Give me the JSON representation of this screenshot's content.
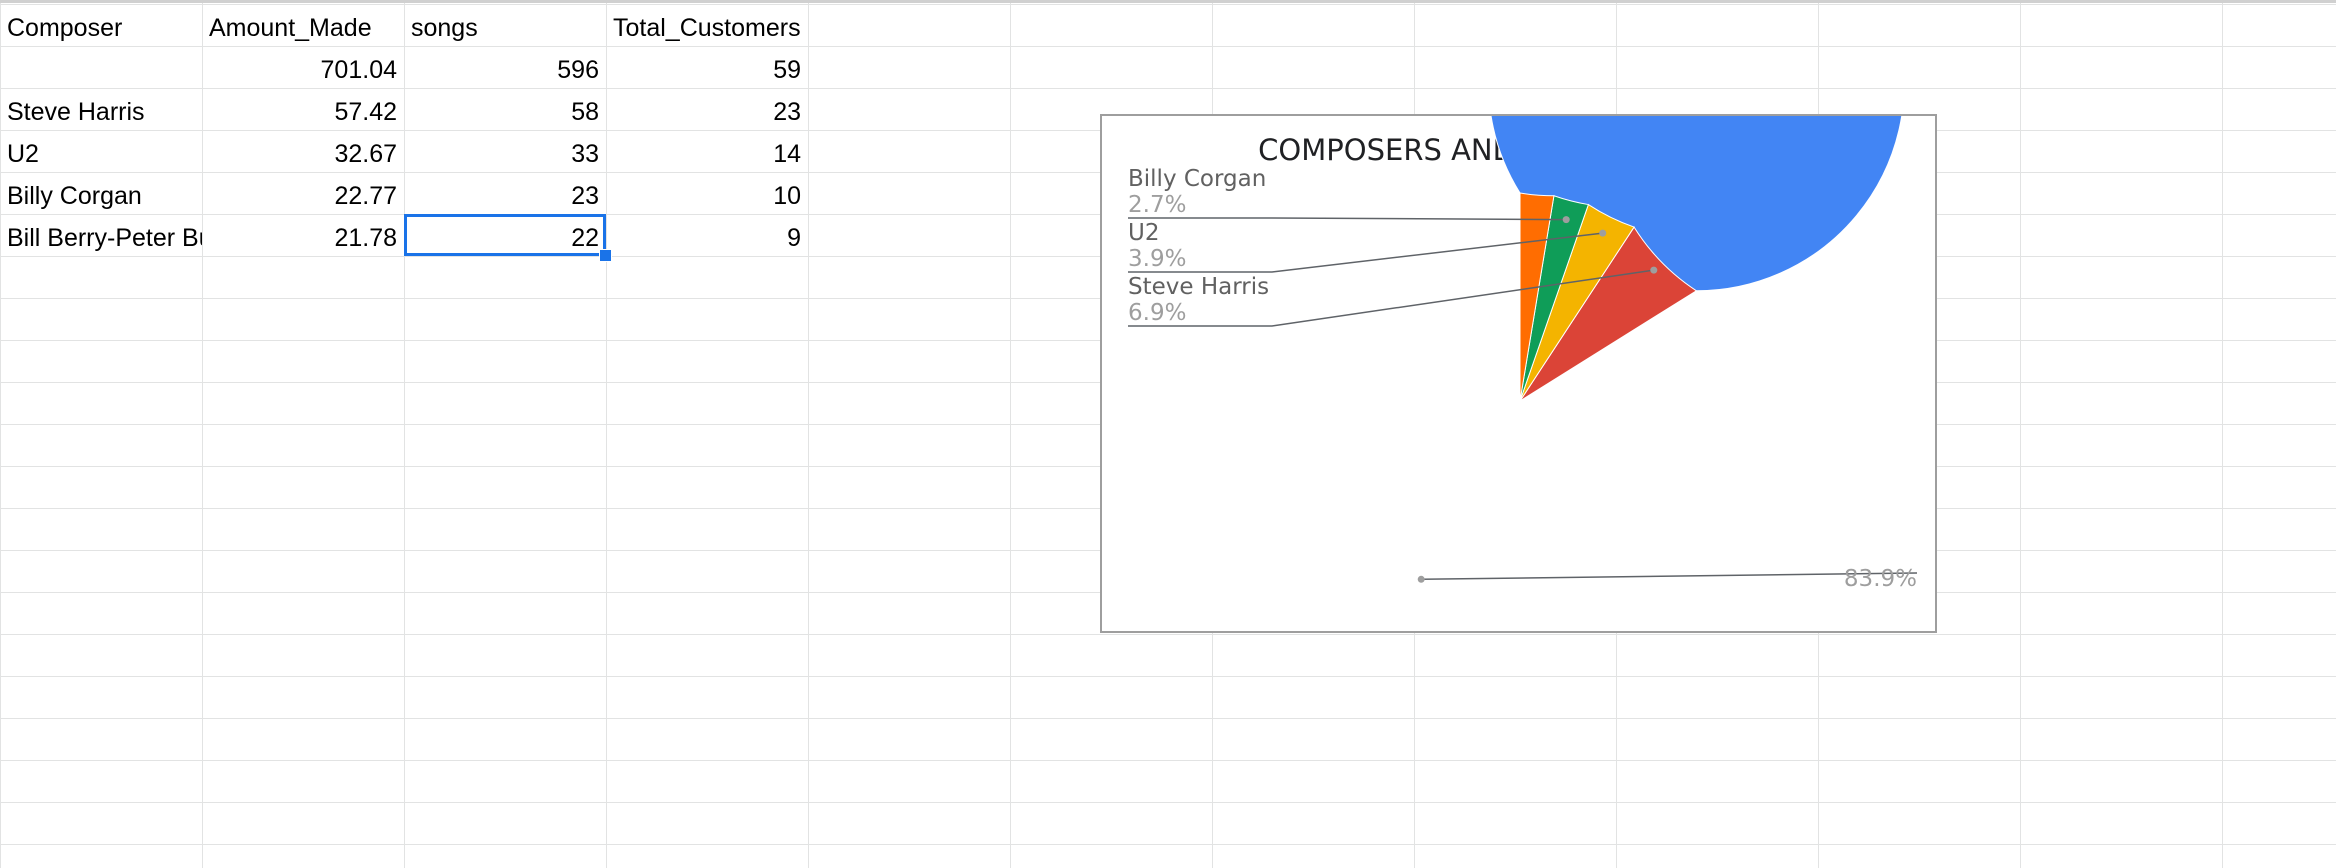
{
  "sheet": {
    "headers": [
      "Composer",
      "Amount_Made",
      "songs",
      "Total_Customers"
    ],
    "rows": [
      [
        "",
        "701.04",
        "596",
        "59"
      ],
      [
        "Steve Harris",
        "57.42",
        "58",
        "23"
      ],
      [
        "U2",
        "32.67",
        "33",
        "14"
      ],
      [
        "Billy Corgan",
        "22.77",
        "23",
        "10"
      ],
      [
        "Bill Berry-Peter Buck",
        "21.78",
        "22",
        "9"
      ]
    ],
    "selected_cell": {
      "row": 4,
      "col": 2
    }
  },
  "chart_data": {
    "type": "pie",
    "title": "COMPOSERS AND AMOUNT-MADE",
    "categories": [
      "",
      "Steve Harris",
      "U2",
      "Billy Corgan",
      "Bill Berry-Peter Buck"
    ],
    "values": [
      701.04,
      57.42,
      32.67,
      22.77,
      21.78
    ],
    "colors": [
      "#4285f4",
      "#db4437",
      "#f4b400",
      "#0f9d58",
      "#ff6d01"
    ],
    "slice_labels": [
      {
        "name": "",
        "percent": "83.9%"
      },
      {
        "name": "Steve Harris",
        "percent": "6.9%"
      },
      {
        "name": "U2",
        "percent": "3.9%"
      },
      {
        "name": "Billy Corgan",
        "percent": "2.7%"
      }
    ],
    "legend": "none",
    "label_style": "callout"
  }
}
